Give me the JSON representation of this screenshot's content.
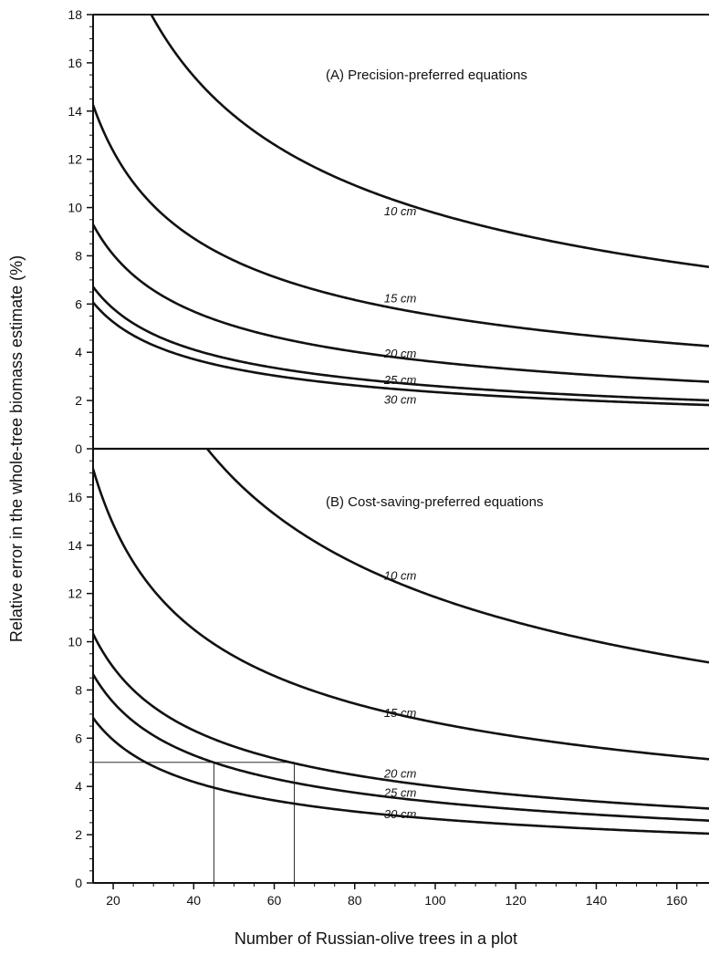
{
  "chart_data": {
    "type": "line",
    "xlabel": "Number of Russian-olive trees in a plot",
    "ylabel": "Relative error in the whole-tree biomass estimate (%)",
    "xlim": [
      15,
      168
    ],
    "x_ticks": [
      20,
      40,
      60,
      80,
      100,
      120,
      140,
      160
    ],
    "grid": false,
    "legend": "none",
    "line_color": "#111111",
    "panels": [
      {
        "id": "A",
        "title": "(A) Precision-preferred equations",
        "ylim": [
          0,
          18
        ],
        "y_ticks": [
          0,
          2,
          4,
          6,
          8,
          10,
          12,
          14,
          16,
          18
        ],
        "series": [
          {
            "label": "10 cm",
            "k": 97.7,
            "label_x": 90,
            "label_y": 9.6
          },
          {
            "label": "15 cm",
            "k": 55.2,
            "label_x": 90,
            "label_y": 6.0
          },
          {
            "label": "20 cm",
            "k": 36.0,
            "label_x": 90,
            "label_y": 3.7
          },
          {
            "label": "25 cm",
            "k": 26.0,
            "label_x": 90,
            "label_y": 2.6
          },
          {
            "label": "30 cm",
            "k": 23.5,
            "label_x": 90,
            "label_y": 1.8
          }
        ]
      },
      {
        "id": "B",
        "title": "(B) Cost-saving-preferred equations",
        "ylim": [
          0,
          18
        ],
        "y_ticks": [
          0,
          2,
          4,
          6,
          8,
          10,
          12,
          14,
          16
        ],
        "series": [
          {
            "label": "10 cm",
            "k": 118.5,
            "label_x": 90,
            "label_y": 12.5
          },
          {
            "label": "15 cm",
            "k": 66.5,
            "label_x": 90,
            "label_y": 6.8
          },
          {
            "label": "20 cm",
            "k": 40.0,
            "label_x": 90,
            "label_y": 4.3
          },
          {
            "label": "25 cm",
            "k": 33.5,
            "label_x": 90,
            "label_y": 3.5
          },
          {
            "label": "30 cm",
            "k": 26.5,
            "label_x": 90,
            "label_y": 2.6
          }
        ],
        "reference_lines": {
          "y": 5,
          "x_values": [
            45,
            65
          ]
        }
      }
    ]
  }
}
